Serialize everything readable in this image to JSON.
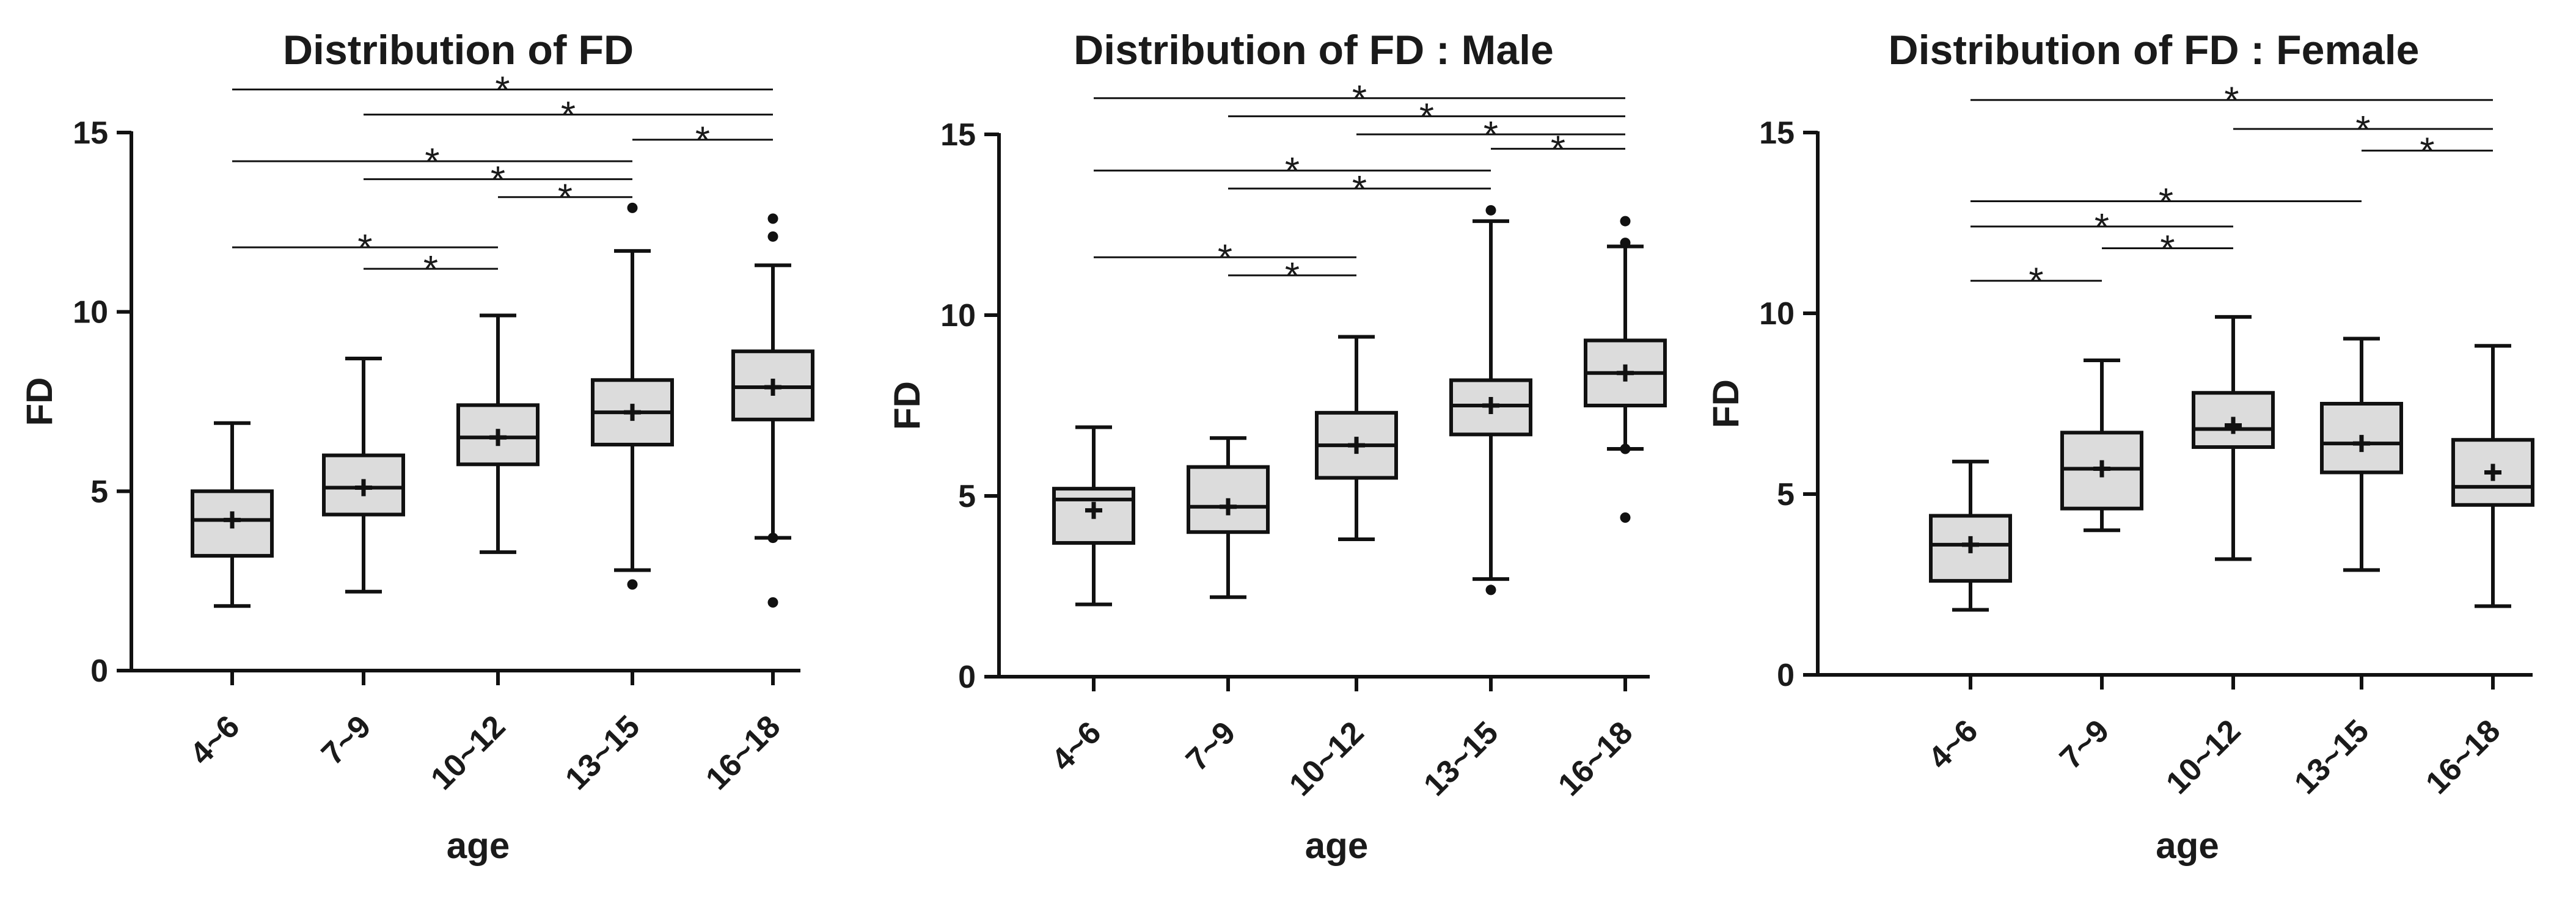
{
  "chart_data": [
    {
      "type": "boxplot",
      "title": "Distribution of FD",
      "xlabel": "age",
      "ylabel": "FD",
      "ylim": [
        0,
        15
      ],
      "yticks": [
        0,
        5,
        10,
        15
      ],
      "categories": [
        "4~6",
        "7~9",
        "10~12",
        "13~15",
        "16~18"
      ],
      "boxes": [
        {
          "whisker_low": 1.8,
          "q1": 3.2,
          "median": 4.2,
          "q3": 5.0,
          "whisker_high": 6.9,
          "mean": 4.2,
          "outliers": []
        },
        {
          "whisker_low": 2.2,
          "q1": 4.35,
          "median": 5.1,
          "q3": 6.0,
          "whisker_high": 8.7,
          "mean": 5.1,
          "outliers": []
        },
        {
          "whisker_low": 3.3,
          "q1": 5.75,
          "median": 6.5,
          "q3": 7.4,
          "whisker_high": 9.9,
          "mean": 6.5,
          "outliers": []
        },
        {
          "whisker_low": 2.8,
          "q1": 6.3,
          "median": 7.2,
          "q3": 8.1,
          "whisker_high": 11.7,
          "mean": 7.2,
          "outliers": [
            12.9,
            2.4
          ]
        },
        {
          "whisker_low": 3.7,
          "q1": 7.0,
          "median": 7.9,
          "q3": 8.9,
          "whisker_high": 11.3,
          "mean": 7.9,
          "outliers": [
            12.6,
            12.1,
            3.7,
            1.9
          ]
        }
      ],
      "comparisons": [
        {
          "from": 0,
          "to": 4,
          "y": 16.2,
          "label": "*"
        },
        {
          "from": 1,
          "to": 4,
          "y": 15.5,
          "label": "*"
        },
        {
          "from": 3,
          "to": 4,
          "y": 14.8,
          "label": "*"
        },
        {
          "from": 0,
          "to": 3,
          "y": 14.2,
          "label": "*"
        },
        {
          "from": 1,
          "to": 3,
          "y": 13.7,
          "label": "*"
        },
        {
          "from": 2,
          "to": 3,
          "y": 13.2,
          "label": "*"
        },
        {
          "from": 0,
          "to": 2,
          "y": 11.8,
          "label": "*"
        },
        {
          "from": 1,
          "to": 2,
          "y": 11.2,
          "label": "*"
        }
      ]
    },
    {
      "type": "boxplot",
      "title": "Distribution of FD : Male",
      "xlabel": "age",
      "ylabel": "FD",
      "ylim": [
        0,
        15
      ],
      "yticks": [
        0,
        5,
        10,
        15
      ],
      "categories": [
        "4~6",
        "7~9",
        "10~12",
        "13~15",
        "16~18"
      ],
      "boxes": [
        {
          "whisker_low": 2.0,
          "q1": 3.7,
          "median": 4.9,
          "q3": 5.2,
          "whisker_high": 6.9,
          "mean": 4.6,
          "outliers": []
        },
        {
          "whisker_low": 2.2,
          "q1": 4.0,
          "median": 4.7,
          "q3": 5.8,
          "whisker_high": 6.6,
          "mean": 4.7,
          "outliers": []
        },
        {
          "whisker_low": 3.8,
          "q1": 5.5,
          "median": 6.4,
          "q3": 7.3,
          "whisker_high": 9.4,
          "mean": 6.4,
          "outliers": []
        },
        {
          "whisker_low": 2.7,
          "q1": 6.7,
          "median": 7.5,
          "q3": 8.2,
          "whisker_high": 12.6,
          "mean": 7.5,
          "outliers": [
            12.9,
            2.4
          ]
        },
        {
          "whisker_low": 6.3,
          "q1": 7.5,
          "median": 8.4,
          "q3": 9.3,
          "whisker_high": 11.9,
          "mean": 8.4,
          "outliers": [
            12.6,
            12.0,
            6.3,
            4.4
          ]
        }
      ],
      "comparisons": [
        {
          "from": 0,
          "to": 4,
          "y": 16.0,
          "label": "*"
        },
        {
          "from": 1,
          "to": 4,
          "y": 15.5,
          "label": "*"
        },
        {
          "from": 2,
          "to": 4,
          "y": 15.0,
          "label": "*"
        },
        {
          "from": 3,
          "to": 4,
          "y": 14.6,
          "label": "*"
        },
        {
          "from": 0,
          "to": 3,
          "y": 14.0,
          "label": "*"
        },
        {
          "from": 1,
          "to": 3,
          "y": 13.5,
          "label": "*"
        },
        {
          "from": 0,
          "to": 2,
          "y": 11.6,
          "label": "*"
        },
        {
          "from": 1,
          "to": 2,
          "y": 11.1,
          "label": "*"
        }
      ]
    },
    {
      "type": "boxplot",
      "title": "Distribution of FD : Female",
      "xlabel": "age",
      "ylabel": "FD",
      "ylim": [
        0,
        15
      ],
      "yticks": [
        0,
        5,
        10,
        15
      ],
      "categories": [
        "4~6",
        "7~9",
        "10~12",
        "13~15",
        "16~18"
      ],
      "boxes": [
        {
          "whisker_low": 1.8,
          "q1": 2.6,
          "median": 3.6,
          "q3": 4.4,
          "whisker_high": 5.9,
          "mean": 3.6,
          "outliers": []
        },
        {
          "whisker_low": 4.0,
          "q1": 4.6,
          "median": 5.7,
          "q3": 6.7,
          "whisker_high": 8.7,
          "mean": 5.7,
          "outliers": []
        },
        {
          "whisker_low": 3.2,
          "q1": 6.3,
          "median": 6.8,
          "q3": 7.8,
          "whisker_high": 9.9,
          "mean": 6.9,
          "outliers": []
        },
        {
          "whisker_low": 2.9,
          "q1": 5.6,
          "median": 6.4,
          "q3": 7.5,
          "whisker_high": 9.3,
          "mean": 6.4,
          "outliers": []
        },
        {
          "whisker_low": 1.9,
          "q1": 4.7,
          "median": 5.2,
          "q3": 6.5,
          "whisker_high": 9.1,
          "mean": 5.6,
          "outliers": []
        }
      ],
      "comparisons": [
        {
          "from": 0,
          "to": 4,
          "y": 15.9,
          "label": "*"
        },
        {
          "from": 2,
          "to": 4,
          "y": 15.1,
          "label": "*"
        },
        {
          "from": 3,
          "to": 4,
          "y": 14.5,
          "label": "*"
        },
        {
          "from": 0,
          "to": 3,
          "y": 13.1,
          "label": "*"
        },
        {
          "from": 0,
          "to": 2,
          "y": 12.4,
          "label": "*"
        },
        {
          "from": 1,
          "to": 2,
          "y": 11.8,
          "label": "*"
        },
        {
          "from": 0,
          "to": 1,
          "y": 10.9,
          "label": "*"
        }
      ]
    }
  ]
}
